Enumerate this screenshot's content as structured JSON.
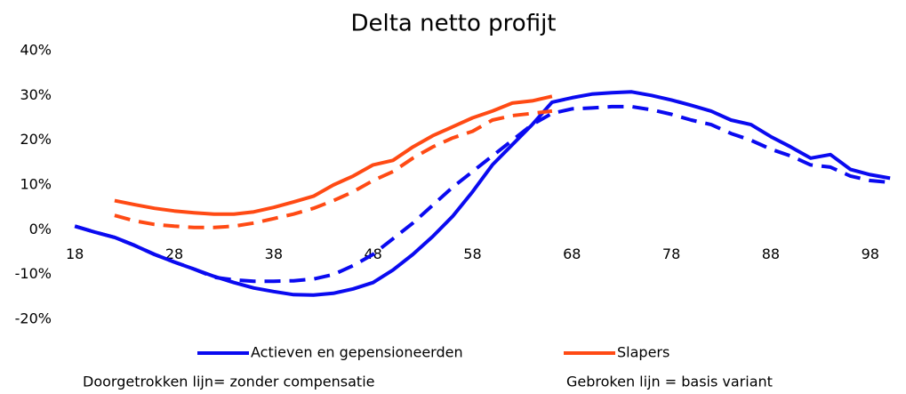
{
  "chart_data": {
    "type": "line",
    "title": "Delta netto profijt",
    "xlim": [
      17,
      101.6
    ],
    "xticks": [
      18,
      28,
      38,
      48,
      58,
      68,
      78,
      88,
      98
    ],
    "ylim": [
      -20,
      40
    ],
    "yticks": [
      {
        "value": -20,
        "label": "-20%"
      },
      {
        "value": -10,
        "label": "-10%"
      },
      {
        "value": 0,
        "label": "0%"
      },
      {
        "value": 10,
        "label": "10%"
      },
      {
        "value": 20,
        "label": "20%"
      },
      {
        "value": 30,
        "label": "30%"
      },
      {
        "value": 40,
        "label": "40%"
      }
    ],
    "series": [
      {
        "name": "Actieven en gepensioneerden",
        "color": "#0a0af0",
        "dashed": false,
        "x": [
          18,
          20,
          22,
          24,
          26,
          28,
          30,
          32,
          34,
          36,
          38,
          40,
          42,
          44,
          46,
          48,
          50,
          52,
          54,
          56,
          58,
          60,
          62,
          64,
          66,
          68,
          70,
          72,
          74,
          76,
          78,
          80,
          82,
          84,
          86,
          88,
          90,
          92,
          94,
          96,
          98,
          100
        ],
        "values": [
          0.8,
          -0.5,
          -1.7,
          -3.5,
          -5.5,
          -7.2,
          -8.8,
          -10.4,
          -11.8,
          -13,
          -13.8,
          -14.5,
          -14.6,
          -14.2,
          -13.2,
          -11.8,
          -9,
          -5.5,
          -1.5,
          3,
          8.5,
          14.5,
          19,
          23.5,
          28.5,
          29.5,
          30.3,
          30.6,
          30.8,
          30,
          29,
          27.8,
          26.5,
          24.5,
          23.5,
          20.8,
          18.5,
          16,
          16.8,
          13.5,
          12.3,
          11.5
        ]
      },
      {
        "color": "#0a0af0",
        "dashed": true,
        "x": [
          18,
          20,
          22,
          24,
          26,
          28,
          30,
          32,
          34,
          36,
          38,
          40,
          42,
          44,
          46,
          48,
          50,
          52,
          54,
          56,
          58,
          60,
          62,
          64,
          66,
          68,
          70,
          72,
          74,
          76,
          78,
          80,
          82,
          84,
          86,
          88,
          90,
          92,
          94,
          96,
          98,
          100
        ],
        "values": [
          0.8,
          -0.5,
          -1.7,
          -3.5,
          -5.5,
          -7.2,
          -8.8,
          -10.6,
          -11.2,
          -11.5,
          -11.5,
          -11.4,
          -11,
          -10,
          -8,
          -5.5,
          -2,
          1.5,
          5.5,
          9.5,
          13,
          16.5,
          20,
          23.5,
          26,
          27,
          27.2,
          27.5,
          27.5,
          26.8,
          25.8,
          24.5,
          23.5,
          21.5,
          20,
          18,
          16.5,
          14.5,
          14,
          12,
          11,
          10.6
        ]
      },
      {
        "name": "Slapers",
        "color": "#ff4a14",
        "dashed": false,
        "x": [
          22,
          24,
          26,
          28,
          30,
          32,
          34,
          36,
          38,
          40,
          42,
          44,
          46,
          48,
          50,
          52,
          54,
          56,
          58,
          60,
          62,
          64,
          66
        ],
        "values": [
          6.5,
          5.6,
          4.8,
          4.2,
          3.8,
          3.5,
          3.5,
          4,
          5,
          6.2,
          7.5,
          10,
          12,
          14.5,
          15.5,
          18.5,
          21,
          23,
          25,
          26.5,
          28.3,
          28.8,
          29.8
        ]
      },
      {
        "color": "#ff4a14",
        "dashed": true,
        "x": [
          22,
          24,
          26,
          28,
          30,
          32,
          34,
          36,
          38,
          40,
          42,
          44,
          46,
          48,
          50,
          52,
          54,
          56,
          58,
          60,
          62,
          64,
          66
        ],
        "values": [
          3.2,
          2,
          1.2,
          0.8,
          0.5,
          0.5,
          0.8,
          1.5,
          2.5,
          3.5,
          4.8,
          6.5,
          8.5,
          11,
          13,
          16,
          18.5,
          20.5,
          22,
          24.5,
          25.5,
          26,
          26.5
        ]
      }
    ],
    "annotations": [
      "Doorgetrokken lijn= zonder compensatie",
      "Gebroken lijn = basis variant"
    ]
  }
}
